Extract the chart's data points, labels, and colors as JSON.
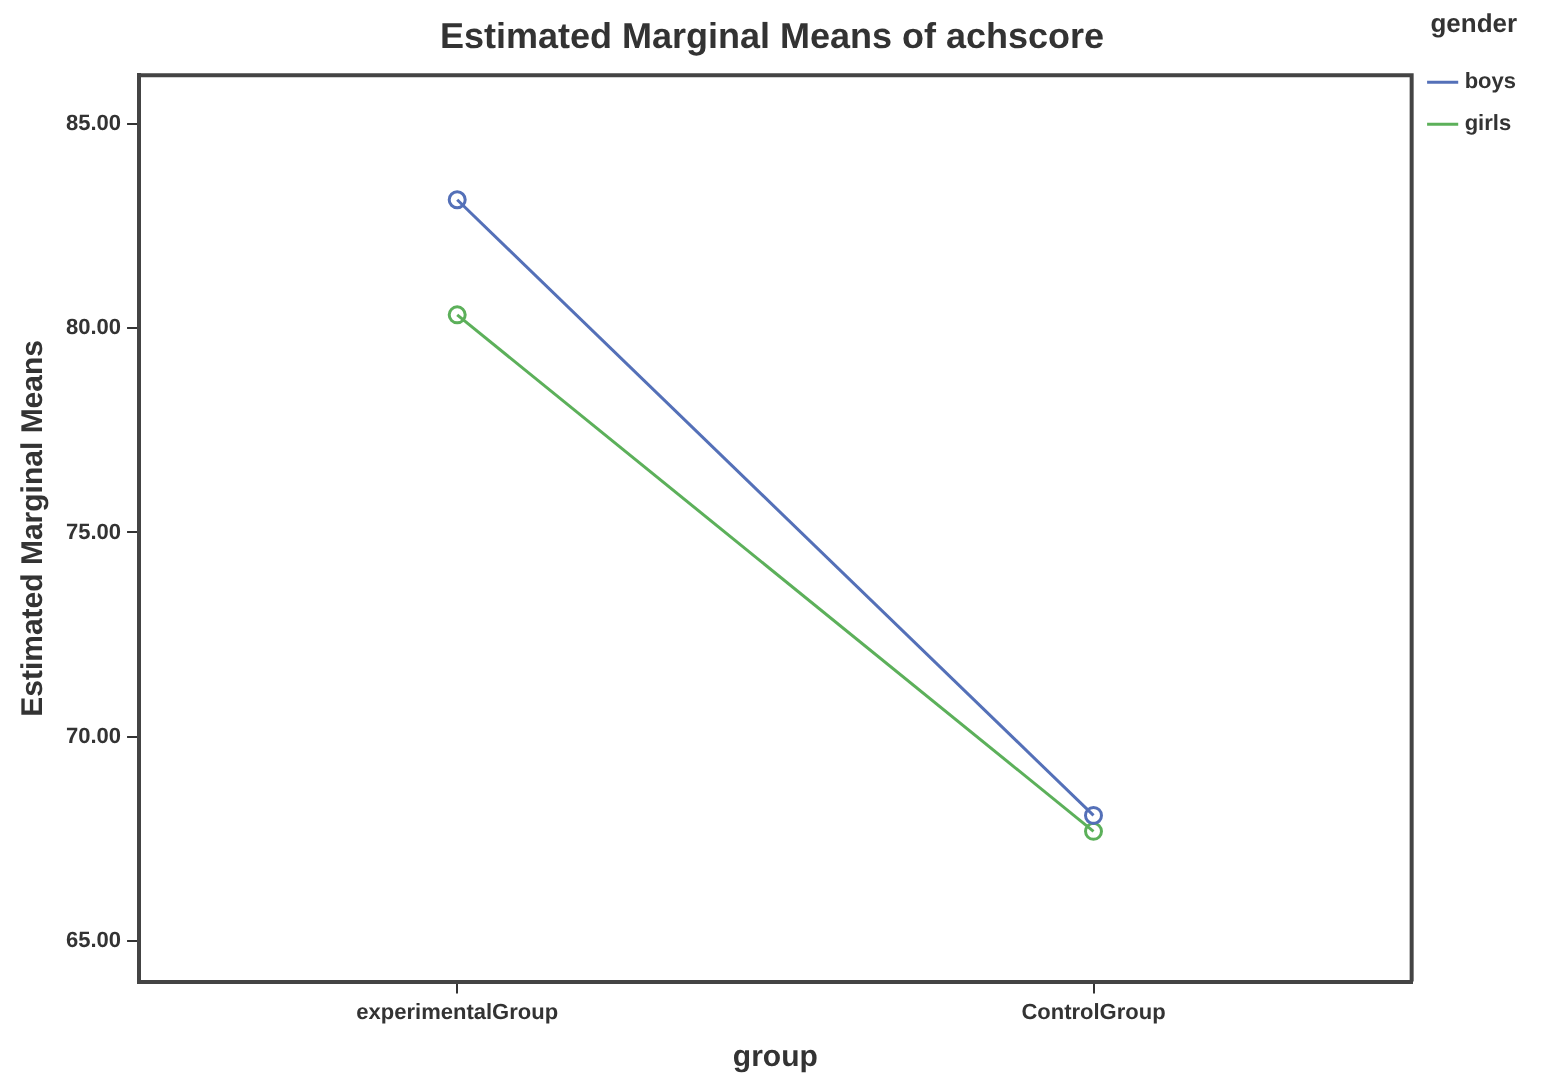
{
  "chart_data": {
    "type": "line",
    "title": "Estimated Marginal Means of achscore",
    "xlabel": "group",
    "ylabel": "Estimated Marginal Means",
    "legend_title": "gender",
    "categories": [
      "experimentalGroup",
      "ControlGroup"
    ],
    "series": [
      {
        "name": "boys",
        "color": "#5470b8",
        "values": [
          83.15,
          68.07
        ]
      },
      {
        "name": "girls",
        "color": "#5cb05a",
        "values": [
          80.33,
          67.68
        ]
      }
    ],
    "ylim": [
      64,
      86.2
    ],
    "yticks": [
      {
        "value": 65,
        "label": "65.00"
      },
      {
        "value": 70,
        "label": "70.00"
      },
      {
        "value": 75,
        "label": "75.00"
      },
      {
        "value": 80,
        "label": "80.00"
      },
      {
        "value": 85,
        "label": "85.00"
      }
    ],
    "grid": false,
    "legend": "top right",
    "marker": "circle",
    "line_style": "solid"
  }
}
